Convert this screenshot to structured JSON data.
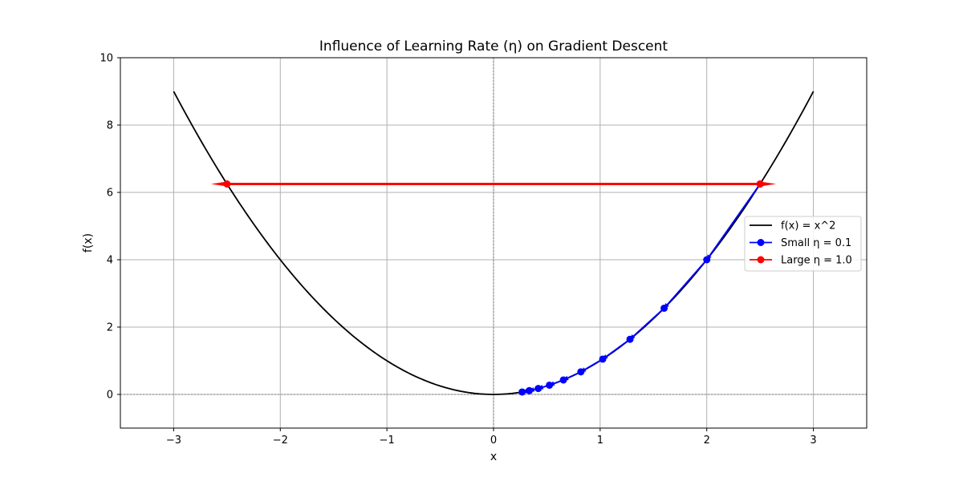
{
  "chart_data": {
    "type": "line",
    "title": "Influence of Learning Rate (η) on Gradient Descent",
    "xlabel": "x",
    "ylabel": "f(x)",
    "xlim": [
      -3.5,
      3.5
    ],
    "ylim": [
      -1,
      10
    ],
    "xticks": [
      -3,
      -2,
      -1,
      0,
      1,
      2,
      3
    ],
    "xtick_labels": [
      "−3",
      "−2",
      "−1",
      "0",
      "1",
      "2",
      "3"
    ],
    "yticks": [
      0,
      2,
      4,
      6,
      8,
      10
    ],
    "ytick_labels": [
      "0",
      "2",
      "4",
      "6",
      "8",
      "10"
    ],
    "grid": true,
    "legend_position": "center-right",
    "reference_lines": {
      "x": 0,
      "y": 0,
      "style": "dashed"
    },
    "series": [
      {
        "name": "f(x) = x^2",
        "kind": "line",
        "color": "#000000",
        "function": "x^2",
        "x_range": [
          -3,
          3
        ]
      },
      {
        "name": "Small η = 0.1",
        "kind": "line-markers-arrows",
        "color": "#0000ff",
        "x": [
          2.5,
          2.0,
          1.6,
          1.28,
          1.024,
          0.8192,
          0.6554,
          0.5243,
          0.4194,
          0.3355,
          0.2684
        ],
        "y": [
          6.25,
          4.0,
          2.56,
          1.638,
          1.049,
          0.671,
          0.4295,
          0.2749,
          0.1759,
          0.1126,
          0.0721
        ]
      },
      {
        "name": "Large η = 1.0",
        "kind": "line-markers-arrows",
        "color": "#ff0000",
        "x": [
          2.5,
          -2.5
        ],
        "y": [
          6.25,
          6.25
        ]
      }
    ]
  }
}
